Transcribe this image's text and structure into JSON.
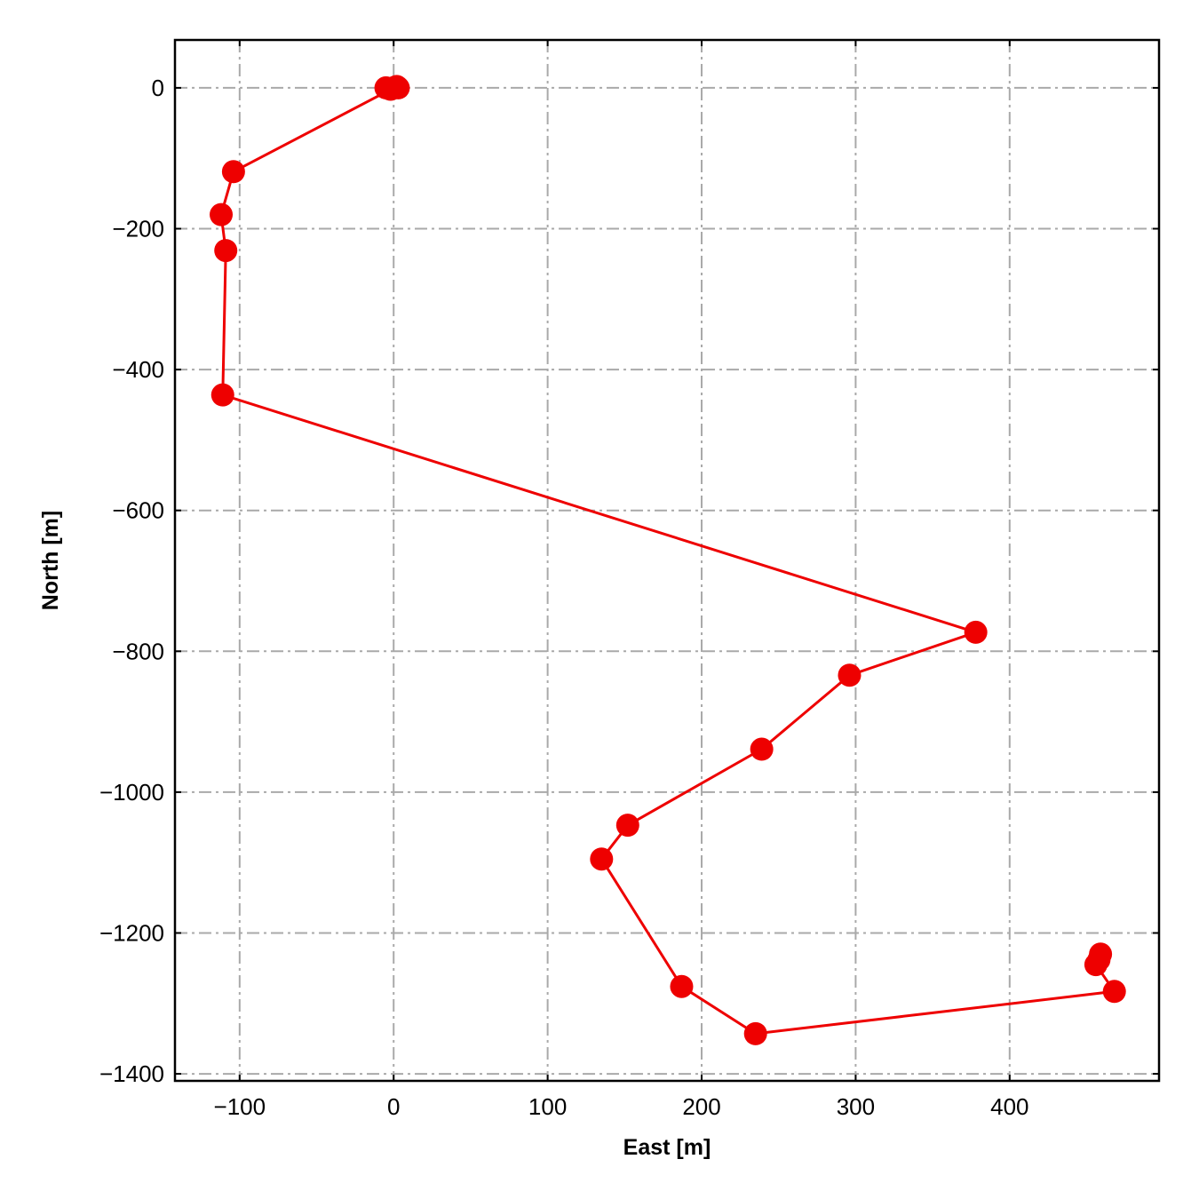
{
  "chart_data": {
    "type": "line",
    "title": "",
    "xlabel": "East [m]",
    "ylabel": "North [m]",
    "xlim": [
      -142,
      497
    ],
    "ylim": [
      -1410,
      68
    ],
    "grid": true,
    "legend": "none",
    "x_ticks": [
      -100,
      0,
      100,
      200,
      300,
      400
    ],
    "x_tick_labels": [
      "−100",
      "0",
      "100",
      "200",
      "300",
      "400"
    ],
    "y_ticks": [
      0,
      -200,
      -400,
      -600,
      -800,
      -1000,
      -1200,
      -1400
    ],
    "y_tick_labels": [
      "0",
      "−200",
      "−400",
      "−600",
      "−800",
      "−1000",
      "−1200",
      "−1400"
    ],
    "series": [
      {
        "color": "#ee0000",
        "marker": "circle",
        "x": [
          3,
          -5,
          2,
          -2,
          1,
          -104,
          -112,
          -109,
          -111,
          378,
          296,
          239,
          152,
          135,
          187,
          235,
          468,
          456,
          458,
          459
        ],
        "y": [
          0,
          0,
          2,
          -2,
          1,
          -119,
          -180,
          -231,
          -436,
          -773,
          -834,
          -939,
          -1047,
          -1095,
          -1276,
          -1343,
          -1283,
          -1245,
          -1238,
          -1230
        ]
      }
    ]
  }
}
